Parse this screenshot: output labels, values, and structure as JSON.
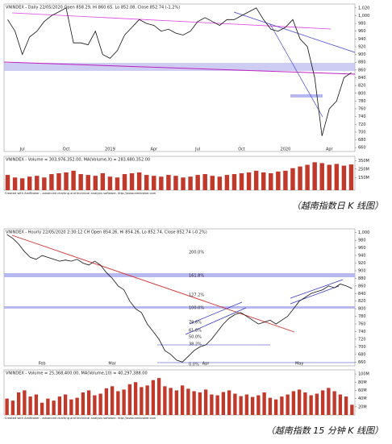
{
  "chart_data": [
    {
      "type": "line",
      "title": "VNINDEX - Daily 22/05/2020 Open 858.29, Hi 860.65, Lo 852.08, Close 852.74 (-1.2%)",
      "color": "#111111",
      "categories": [
        null,
        null,
        "Jul",
        null,
        null,
        null,
        null,
        null,
        "Oct",
        null,
        null,
        null,
        null,
        null,
        "2019",
        null,
        null,
        null,
        null,
        null,
        "Apr",
        null,
        null,
        null,
        null,
        null,
        "Jul",
        null,
        null,
        null,
        null,
        null,
        "Oct",
        null,
        null,
        null,
        null,
        null,
        "2020",
        null,
        null,
        null,
        null,
        null,
        "Apr",
        null,
        null,
        null
      ],
      "values": [
        990,
        960,
        900,
        945,
        960,
        985,
        1000,
        1010,
        1020,
        930,
        930,
        925,
        960,
        900,
        890,
        910,
        950,
        970,
        990,
        980,
        975,
        960,
        965,
        955,
        950,
        960,
        985,
        995,
        985,
        975,
        990,
        990,
        1000,
        1010,
        1020,
        990,
        965,
        960,
        970,
        990,
        940,
        920,
        840,
        690,
        760,
        780,
        840,
        853
      ],
      "ylim": [
        650,
        1030
      ],
      "yticks": [
        660,
        680,
        700,
        720,
        740,
        760,
        780,
        800,
        820,
        840,
        860,
        880,
        900,
        920,
        940,
        960,
        980,
        {
          "value": 1000,
          "label": "1,000"
        },
        {
          "value": 1020,
          "label": "1,020"
        }
      ]
    },
    {
      "type": "bar",
      "title": "VNINDEX - Volume = 303,976,352.00, MA(Volume,X) = 283,680,352.00",
      "color": "#c0392b",
      "footer": "Created with AmiBroker - advanced charting and technical analysis software. http://www.amibroker.com",
      "values": [
        180,
        150,
        140,
        160,
        170,
        150,
        190,
        200,
        210,
        230,
        190,
        180,
        170,
        200,
        160,
        150,
        190,
        200,
        210,
        180,
        170,
        160,
        180,
        170,
        150,
        160,
        180,
        190,
        170,
        160,
        180,
        190,
        200,
        210,
        230,
        210,
        200,
        220,
        230,
        260,
        280,
        300,
        330,
        320,
        300,
        310,
        290,
        304
      ],
      "ylim": [
        0,
        400
      ],
      "yticks": [
        {
          "value": 150,
          "label": "150M"
        },
        {
          "value": 250,
          "label": "250M"
        },
        {
          "value": 350,
          "label": "350M"
        }
      ]
    },
    {
      "type": "line",
      "title": "VNINDEX - Hourly 22/05/2020 2:30:12 CH Open 854.26, Hi 854.26, Lo 852.74, Close 852.74 (-0.2%)",
      "color": "#111111",
      "categories": [
        null,
        null,
        null,
        null,
        null,
        null,
        "Feb",
        null,
        null,
        null,
        null,
        null,
        null,
        null,
        null,
        null,
        null,
        null,
        "Mar",
        null,
        null,
        null,
        null,
        null,
        null,
        null,
        null,
        null,
        null,
        null,
        null,
        null,
        null,
        null,
        "Apr",
        null,
        null,
        null,
        null,
        null,
        null,
        null,
        null,
        null,
        null,
        null,
        null,
        null,
        null,
        null,
        "May",
        null,
        null,
        null,
        null,
        null,
        null,
        null,
        null,
        null
      ],
      "values": [
        995,
        985,
        970,
        950,
        935,
        930,
        940,
        935,
        930,
        925,
        928,
        925,
        930,
        920,
        915,
        925,
        915,
        895,
        880,
        860,
        850,
        820,
        800,
        790,
        760,
        740,
        720,
        690,
        680,
        665,
        660,
        675,
        690,
        700,
        705,
        720,
        740,
        760,
        775,
        785,
        790,
        780,
        770,
        760,
        765,
        770,
        760,
        770,
        780,
        800,
        820,
        830,
        840,
        845,
        850,
        860,
        855,
        865,
        860,
        853
      ],
      "ylim": [
        650,
        1010
      ],
      "yticks": [
        660,
        680,
        700,
        720,
        740,
        760,
        780,
        800,
        820,
        840,
        860,
        880,
        900,
        920,
        940,
        960,
        980,
        {
          "value": 1000,
          "label": "1,000"
        }
      ]
    },
    {
      "type": "bar",
      "title": "VNINDEX - Volume = 25,368,400.00, MA(Volume,10) = 40,297,388.00",
      "color": "#c0392b",
      "footer": "Created with AmiBroker - advanced charting and technical analysis software. http://www.amibroker.com",
      "values": [
        40,
        35,
        55,
        60,
        45,
        50,
        30,
        40,
        35,
        45,
        50,
        38,
        42,
        55,
        60,
        48,
        52,
        65,
        70,
        58,
        62,
        75,
        80,
        68,
        72,
        85,
        90,
        70,
        66,
        60,
        72,
        64,
        58,
        55,
        62,
        50,
        48,
        56,
        60,
        52,
        46,
        50,
        44,
        48,
        55,
        42,
        38,
        45,
        50,
        58,
        62,
        55,
        48,
        52,
        60,
        66,
        58,
        50,
        45,
        25
      ],
      "ylim": [
        0,
        110
      ],
      "yticks": [
        {
          "value": 20,
          "label": "20M"
        },
        {
          "value": 40,
          "label": "40M"
        },
        {
          "value": 60,
          "label": "60M"
        },
        {
          "value": 80,
          "label": "80M"
        },
        {
          "value": 100,
          "label": "100M"
        }
      ]
    }
  ],
  "fib_labels": [
    "200.0%",
    "161.8%",
    "127.2%",
    "100.0%",
    "78.6%",
    "61.8%",
    "50.0%",
    "38.2%",
    "0.0%"
  ],
  "captions": [
    "（越南指数日 K 线图）",
    "（越南指数 15 分钟 K 线图）"
  ]
}
